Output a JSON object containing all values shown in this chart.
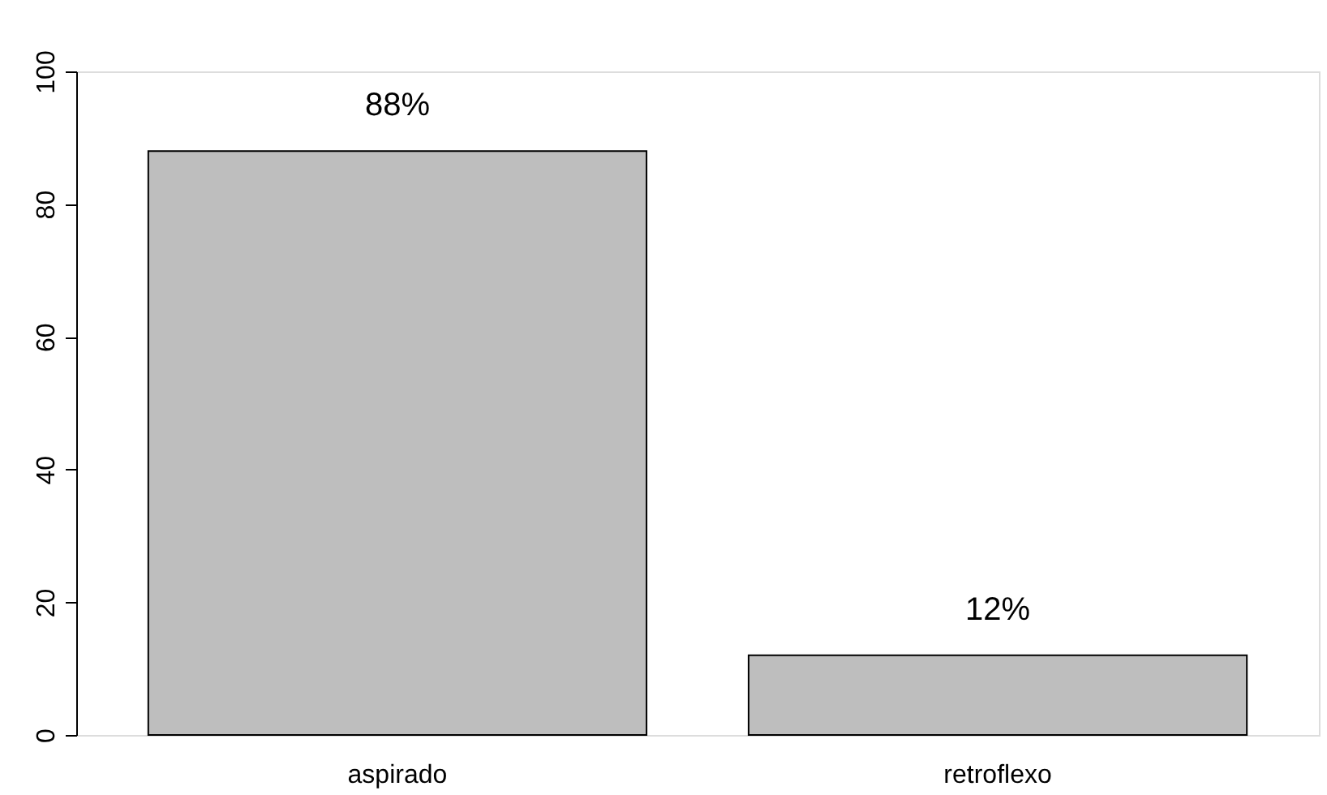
{
  "chart_data": {
    "type": "bar",
    "categories": [
      "aspirado",
      "retroflexo"
    ],
    "values": [
      88,
      12
    ],
    "color": "#bebebe",
    "value_labels": [
      "88%",
      "12%"
    ],
    "ylim": [
      0,
      100
    ],
    "yticks": [
      0,
      20,
      40,
      60,
      80,
      100
    ],
    "grid": false
  }
}
